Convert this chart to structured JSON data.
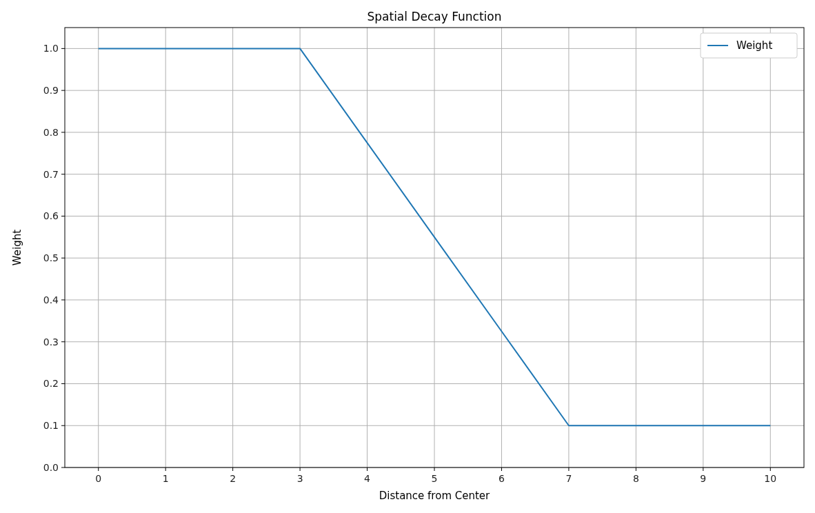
{
  "chart_data": {
    "type": "line",
    "title": "Spatial Decay Function",
    "xlabel": "Distance from Center",
    "ylabel": "Weight",
    "x": [
      0,
      1,
      2,
      3,
      4,
      5,
      6,
      7,
      8,
      9,
      10
    ],
    "series": [
      {
        "name": "Weight",
        "color": "#1f77b4",
        "values": [
          1.0,
          1.0,
          1.0,
          1.0,
          0.775,
          0.55,
          0.325,
          0.1,
          0.1,
          0.1,
          0.1
        ]
      }
    ],
    "xlim": [
      -0.5,
      10.5
    ],
    "xticks": [
      0,
      1,
      2,
      3,
      4,
      5,
      6,
      7,
      8,
      9,
      10
    ],
    "ylim": [
      0,
      1.05
    ],
    "yticks": [
      {
        "value": 0,
        "label": "0.0"
      },
      {
        "value": 0.1,
        "label": "0.1"
      },
      {
        "value": 0.2,
        "label": "0.2"
      },
      {
        "value": 0.3,
        "label": "0.3"
      },
      {
        "value": 0.4,
        "label": "0.4"
      },
      {
        "value": 0.5,
        "label": "0.5"
      },
      {
        "value": 0.6,
        "label": "0.6"
      },
      {
        "value": 0.7,
        "label": "0.7"
      },
      {
        "value": 0.8,
        "label": "0.8"
      },
      {
        "value": 0.9,
        "label": "0.9"
      },
      {
        "value": 1.0,
        "label": "1.0"
      }
    ],
    "grid": true,
    "legend": "top right"
  }
}
